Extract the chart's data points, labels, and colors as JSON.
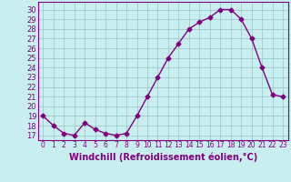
{
  "x": [
    0,
    1,
    2,
    3,
    4,
    5,
    6,
    7,
    8,
    9,
    10,
    11,
    12,
    13,
    14,
    15,
    16,
    17,
    18,
    19,
    20,
    21,
    22,
    23
  ],
  "y": [
    19,
    18,
    17.2,
    17,
    18.3,
    17.6,
    17.2,
    17,
    17.2,
    19,
    21,
    23,
    25,
    26.5,
    28,
    28.7,
    29.2,
    30,
    30,
    29,
    27,
    24,
    21.2,
    21
  ],
  "line_color": "#800080",
  "marker": "D",
  "marker_size": 2.5,
  "bg_color": "#c8eef0",
  "grid_color": "#a0cccc",
  "xlabel": "Windchill (Refroidissement éolien,°C)",
  "xlabel_fontsize": 7,
  "yticks": [
    17,
    18,
    19,
    20,
    21,
    22,
    23,
    24,
    25,
    26,
    27,
    28,
    29,
    30
  ],
  "ylim": [
    16.5,
    30.8
  ],
  "xlim": [
    -0.5,
    23.5
  ],
  "xticks": [
    0,
    1,
    2,
    3,
    4,
    5,
    6,
    7,
    8,
    9,
    10,
    11,
    12,
    13,
    14,
    15,
    16,
    17,
    18,
    19,
    20,
    21,
    22,
    23
  ],
  "tick_fontsize": 5.5,
  "ytick_fontsize": 6.0,
  "linewidth": 1.0,
  "spine_color": "#800080"
}
